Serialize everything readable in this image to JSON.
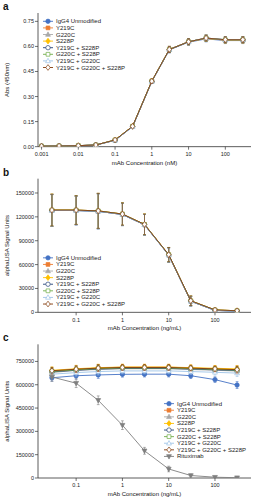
{
  "chart_data": [
    {
      "type": "line",
      "title": "a",
      "x_label": "mAb Concentration (nM)",
      "y_label": "Abs (450nm)",
      "log": "x",
      "grid": false,
      "legend": "upper left",
      "xlim": [
        0.0008,
        500
      ],
      "xticks": [
        0.001,
        0.01,
        0.1,
        1,
        10,
        100
      ],
      "ylim": [
        0,
        0.8
      ],
      "yticks": [
        {
          "value": 0,
          "label": "0.00"
        },
        0.15,
        {
          "value": 0.3,
          "label": "0.30"
        },
        0.45,
        {
          "value": 0.6,
          "label": "0.60"
        },
        0.75
      ],
      "x": [
        0.001,
        0.003,
        0.01,
        0.03,
        0.1,
        0.3,
        1,
        3,
        10,
        30,
        100,
        300
      ],
      "series": [
        {
          "name": "IgG4 Unmodified",
          "color": "#4472C4",
          "marker": "circle",
          "values": [
            0.003,
            0.004,
            0.006,
            0.01,
            0.038,
            0.12,
            0.39,
            0.58,
            0.625,
            0.645,
            0.635,
            0.635
          ],
          "errors": [
            0.001,
            0.001,
            0.002,
            0.002,
            0.004,
            0.008,
            0.012,
            0.018,
            0.018,
            0.018,
            0.018,
            0.018
          ]
        },
        {
          "name": "Y219C",
          "color": "#ED7D31",
          "marker": "square",
          "values": [
            0.003,
            0.004,
            0.006,
            0.01,
            0.04,
            0.122,
            0.392,
            0.582,
            0.628,
            0.648,
            0.638,
            0.638
          ],
          "errors": [
            0.001,
            0.001,
            0.002,
            0.002,
            0.004,
            0.008,
            0.012,
            0.018,
            0.018,
            0.018,
            0.018,
            0.018
          ]
        },
        {
          "name": "G220C",
          "color": "#A9A9A9",
          "marker": "triangle-up",
          "values": [
            0.003,
            0.004,
            0.006,
            0.01,
            0.04,
            0.122,
            0.392,
            0.582,
            0.628,
            0.648,
            0.638,
            0.638
          ],
          "errors": [
            0.001,
            0.001,
            0.002,
            0.002,
            0.004,
            0.008,
            0.012,
            0.018,
            0.018,
            0.018,
            0.018,
            0.018
          ]
        },
        {
          "name": "S228P",
          "color": "#FFC000",
          "marker": "diamond",
          "values": [
            0.003,
            0.004,
            0.006,
            0.01,
            0.04,
            0.122,
            0.392,
            0.582,
            0.628,
            0.648,
            0.638,
            0.638
          ],
          "errors": [
            0.001,
            0.001,
            0.002,
            0.002,
            0.004,
            0.008,
            0.012,
            0.018,
            0.018,
            0.018,
            0.018,
            0.018
          ]
        },
        {
          "name": "Y219C + S228P",
          "color": "#264478",
          "marker": "circle-open",
          "values": [
            0.003,
            0.004,
            0.006,
            0.01,
            0.038,
            0.12,
            0.39,
            0.58,
            0.628,
            0.65,
            0.64,
            0.64
          ],
          "errors": [
            0.001,
            0.001,
            0.002,
            0.002,
            0.004,
            0.008,
            0.012,
            0.018,
            0.018,
            0.018,
            0.018,
            0.018
          ]
        },
        {
          "name": "G220C + S228P",
          "color": "#70AD47",
          "marker": "square-open",
          "values": [
            0.003,
            0.004,
            0.006,
            0.01,
            0.04,
            0.122,
            0.392,
            0.582,
            0.628,
            0.65,
            0.64,
            0.64
          ],
          "errors": [
            0.001,
            0.001,
            0.002,
            0.002,
            0.004,
            0.008,
            0.012,
            0.018,
            0.018,
            0.018,
            0.018,
            0.018
          ]
        },
        {
          "name": "Y219C + G220C",
          "color": "#9DC3E6",
          "marker": "triangle-up-open",
          "values": [
            0.003,
            0.004,
            0.006,
            0.01,
            0.038,
            0.12,
            0.39,
            0.582,
            0.628,
            0.65,
            0.64,
            0.64
          ],
          "errors": [
            0.001,
            0.001,
            0.002,
            0.002,
            0.004,
            0.008,
            0.012,
            0.018,
            0.018,
            0.018,
            0.018,
            0.018
          ]
        },
        {
          "name": "Y219C + G220C + S228P",
          "color": "#843C0C",
          "marker": "diamond-open",
          "values": [
            0.003,
            0.004,
            0.006,
            0.01,
            0.04,
            0.122,
            0.392,
            0.582,
            0.628,
            0.65,
            0.64,
            0.64
          ],
          "errors": [
            0.001,
            0.001,
            0.002,
            0.002,
            0.004,
            0.008,
            0.012,
            0.018,
            0.018,
            0.018,
            0.018,
            0.018
          ]
        }
      ]
    },
    {
      "type": "line",
      "title": "b",
      "x_label": "mAb Concentration (ng/mL)",
      "y_label": "alphaLISA Signal Units",
      "log": "x",
      "grid": false,
      "legend": "lower left",
      "xlim": [
        0.015,
        600
      ],
      "xticks": [
        0.1,
        1,
        10,
        100
      ],
      "ylim": [
        0,
        168000
      ],
      "yticks": [
        0,
        30000,
        60000,
        90000,
        120000,
        150000
      ],
      "x": [
        0.03,
        0.1,
        0.3,
        1,
        3,
        10,
        30,
        100,
        300
      ],
      "series": [
        {
          "name": "IgG4 Unmodified",
          "color": "#4472C4",
          "marker": "circle",
          "values": [
            128000,
            128000,
            127000,
            123000,
            110000,
            72000,
            14000,
            2500,
            1500
          ],
          "errors": [
            20000,
            18000,
            22000,
            14000,
            13000,
            9000,
            6000,
            1500,
            800
          ]
        },
        {
          "name": "Y219C",
          "color": "#ED7D31",
          "marker": "square",
          "values": [
            128500,
            128500,
            127500,
            123500,
            110500,
            72500,
            14500,
            3000,
            2000
          ],
          "errors": [
            20000,
            18000,
            22000,
            14000,
            13000,
            9000,
            6000,
            1500,
            800
          ]
        },
        {
          "name": "G220C",
          "color": "#A9A9A9",
          "marker": "triangle-up",
          "values": [
            128000,
            128000,
            127000,
            123000,
            110000,
            72000,
            14000,
            2500,
            1500
          ],
          "errors": [
            20000,
            18000,
            22000,
            14000,
            13000,
            9000,
            6000,
            1500,
            800
          ]
        },
        {
          "name": "S228P",
          "color": "#FFC000",
          "marker": "diamond",
          "values": [
            128500,
            128500,
            127500,
            123500,
            110500,
            72500,
            14500,
            3000,
            2000
          ],
          "errors": [
            20000,
            18000,
            22000,
            14000,
            13000,
            9000,
            6000,
            1500,
            800
          ]
        },
        {
          "name": "Y219C + S228P",
          "color": "#264478",
          "marker": "circle-open",
          "values": [
            128000,
            128000,
            127000,
            123000,
            110000,
            72000,
            14000,
            2500,
            1500
          ],
          "errors": [
            20000,
            18000,
            22000,
            14000,
            13000,
            9000,
            6000,
            1500,
            800
          ]
        },
        {
          "name": "G220C + S228P",
          "color": "#70AD47",
          "marker": "square-open",
          "values": [
            128500,
            128500,
            127500,
            123500,
            110500,
            72500,
            14500,
            3000,
            2000
          ],
          "errors": [
            20000,
            18000,
            22000,
            14000,
            13000,
            9000,
            6000,
            1500,
            800
          ]
        },
        {
          "name": "Y219C + G220C",
          "color": "#9DC3E6",
          "marker": "triangle-up-open",
          "values": [
            128000,
            128000,
            127000,
            123000,
            110000,
            72000,
            14000,
            2500,
            1500
          ],
          "errors": [
            20000,
            18000,
            22000,
            14000,
            13000,
            9000,
            6000,
            1500,
            800
          ]
        },
        {
          "name": "Y219C + G220C + S228P",
          "color": "#843C0C",
          "marker": "diamond-open",
          "values": [
            128500,
            128500,
            127500,
            123500,
            110500,
            72500,
            14500,
            3000,
            2000
          ],
          "errors": [
            20000,
            18000,
            22000,
            14000,
            13000,
            9000,
            6000,
            1500,
            800
          ]
        }
      ]
    },
    {
      "type": "line",
      "title": "c",
      "x_label": "mAb Concentration (ng/mL)",
      "y_label": "alphaLISA Signal Units",
      "log": "x",
      "grid": false,
      "legend": "lower right",
      "xlim": [
        0.015,
        600
      ],
      "xticks": [
        0.1,
        1,
        10,
        100
      ],
      "ylim": [
        0,
        860000
      ],
      "yticks": [
        0,
        150000,
        300000,
        450000,
        600000,
        750000
      ],
      "x": [
        0.03,
        0.1,
        0.3,
        1,
        3,
        10,
        30,
        100,
        300
      ],
      "series": [
        {
          "name": "IgG4 Unmodified",
          "color": "#4472C4",
          "marker": "circle",
          "values": [
            645000,
            658000,
            663000,
            667000,
            668000,
            668000,
            658000,
            633000,
            598000
          ],
          "errors": [
            22000,
            22000,
            22000,
            18000,
            18000,
            18000,
            18000,
            18000,
            22000
          ]
        },
        {
          "name": "Y219C",
          "color": "#ED7D31",
          "marker": "square",
          "values": [
            688000,
            698000,
            708000,
            713000,
            713000,
            713000,
            708000,
            703000,
            698000
          ],
          "errors": [
            22000,
            22000,
            22000,
            18000,
            18000,
            18000,
            18000,
            18000,
            22000
          ]
        },
        {
          "name": "G220C",
          "color": "#A9A9A9",
          "marker": "triangle-up",
          "values": [
            678000,
            693000,
            698000,
            703000,
            703000,
            703000,
            698000,
            693000,
            688000
          ],
          "errors": [
            22000,
            22000,
            22000,
            18000,
            18000,
            18000,
            18000,
            18000,
            22000
          ]
        },
        {
          "name": "S228P",
          "color": "#FFC000",
          "marker": "diamond",
          "values": [
            693000,
            703000,
            710000,
            714000,
            714000,
            714000,
            710000,
            706000,
            702000
          ],
          "errors": [
            22000,
            22000,
            22000,
            18000,
            18000,
            18000,
            18000,
            18000,
            22000
          ]
        },
        {
          "name": "Y219C + S228P",
          "color": "#264478",
          "marker": "circle-open",
          "values": [
            683000,
            693000,
            701000,
            705000,
            705000,
            705000,
            701000,
            696000,
            691000
          ],
          "errors": [
            22000,
            22000,
            22000,
            18000,
            18000,
            18000,
            18000,
            18000,
            22000
          ]
        },
        {
          "name": "G220C + S228P",
          "color": "#70AD47",
          "marker": "square-open",
          "values": [
            686000,
            696000,
            704000,
            708000,
            708000,
            708000,
            704000,
            699000,
            694000
          ],
          "errors": [
            22000,
            22000,
            22000,
            18000,
            18000,
            18000,
            18000,
            18000,
            22000
          ]
        },
        {
          "name": "Y219C + G220C",
          "color": "#9DC3E6",
          "marker": "triangle-up-open",
          "values": [
            668000,
            678000,
            685000,
            689000,
            689000,
            689000,
            685000,
            680000,
            675000
          ],
          "errors": [
            22000,
            22000,
            22000,
            18000,
            18000,
            18000,
            18000,
            18000,
            22000
          ]
        },
        {
          "name": "Y219C + G220C + S228P",
          "color": "#843C0C",
          "marker": "diamond-open",
          "values": [
            690000,
            700000,
            707000,
            711000,
            711000,
            711000,
            707000,
            702000,
            697000
          ],
          "errors": [
            22000,
            22000,
            22000,
            18000,
            18000,
            18000,
            18000,
            18000,
            22000
          ]
        },
        {
          "name": "Rituximab",
          "color": "#7F7F7F",
          "marker": "triangle-down",
          "values": [
            650000,
            610000,
            500000,
            340000,
            175000,
            58000,
            16000,
            5000,
            2000
          ],
          "errors": [
            28000,
            28000,
            28000,
            28000,
            22000,
            18000,
            9000,
            3000,
            1500
          ]
        }
      ]
    }
  ]
}
